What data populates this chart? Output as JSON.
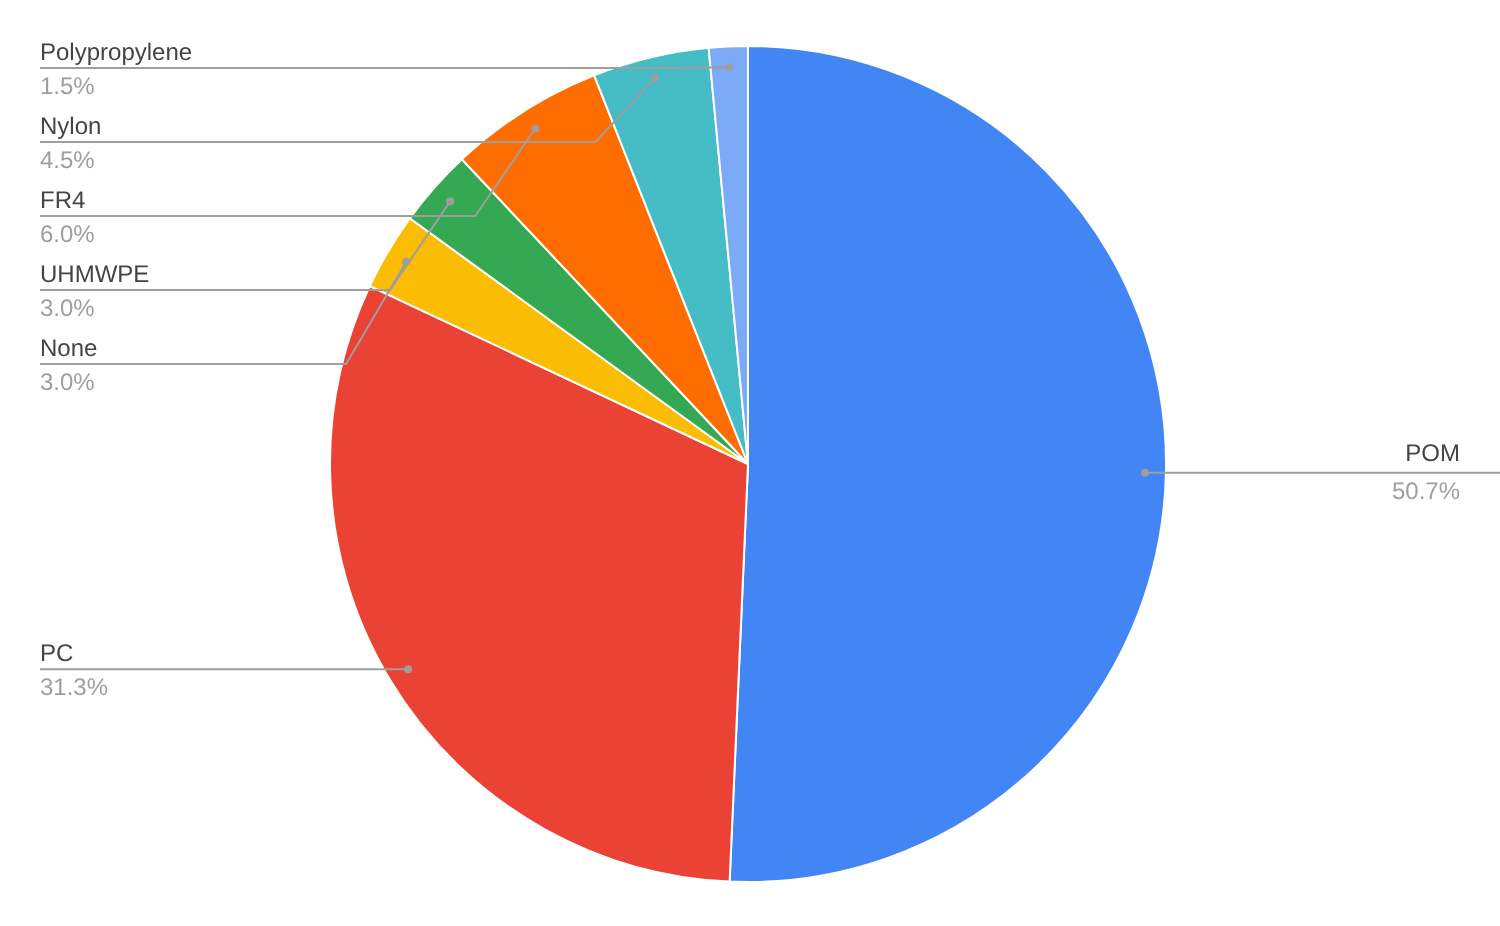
{
  "chart_data": {
    "type": "pie",
    "categories": [
      "POM",
      "PC",
      "None",
      "UHMWPE",
      "FR4",
      "Nylon",
      "Polypropylene"
    ],
    "values": [
      50.7,
      31.3,
      3.0,
      3.0,
      6.0,
      4.5,
      1.5
    ],
    "value_labels": [
      "50.7%",
      "31.3%",
      "3.0%",
      "3.0%",
      "6.0%",
      "4.5%",
      "1.5%"
    ],
    "colors": [
      "#4285f4",
      "#ea4335",
      "#fbbc04",
      "#34a853",
      "#ff6d01",
      "#46bdc6",
      "#7baaf7"
    ],
    "legend": false
  }
}
